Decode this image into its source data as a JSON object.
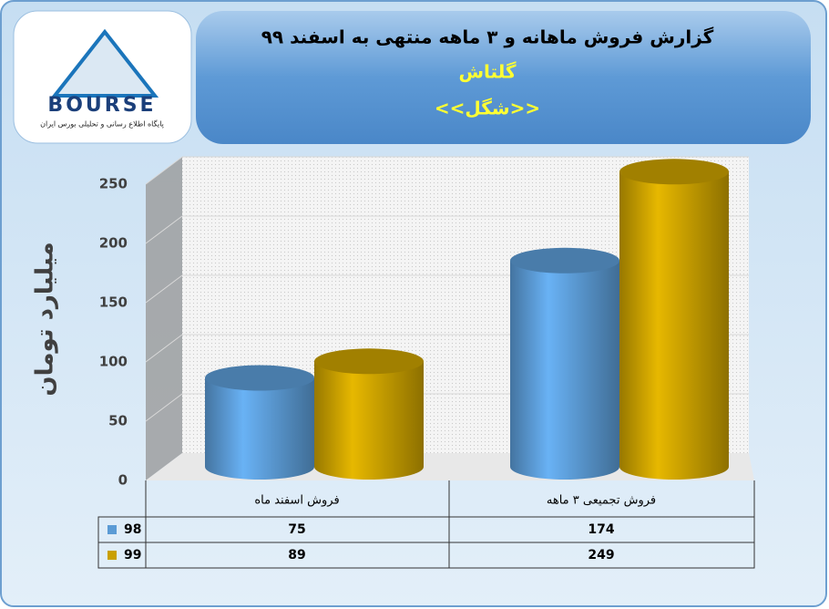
{
  "logo": {
    "name": "BOURSE",
    "caption": "پایگاه اطلاع رسانی و تحلیلی بورس ایران"
  },
  "chart_data": {
    "type": "bar",
    "title": "گزارش فروش ماهانه و ۳ ماهه  منتهی به اسفند ۹۹",
    "subtitles": [
      "گلتاش",
      "<<شگل>>"
    ],
    "y_label": "میلیارد تومان",
    "categories": [
      "فروش اسفند  ماه",
      "فروش تجمیعی ۳ ماهه"
    ],
    "series": [
      {
        "name": "98",
        "color": "#5b9bd5",
        "values": [
          75,
          174
        ]
      },
      {
        "name": "99",
        "color": "#c9a000",
        "values": [
          89,
          249
        ]
      }
    ],
    "ylim": [
      0,
      250
    ],
    "yticks": [
      0,
      50,
      100,
      150,
      200,
      250
    ],
    "grid": true
  }
}
